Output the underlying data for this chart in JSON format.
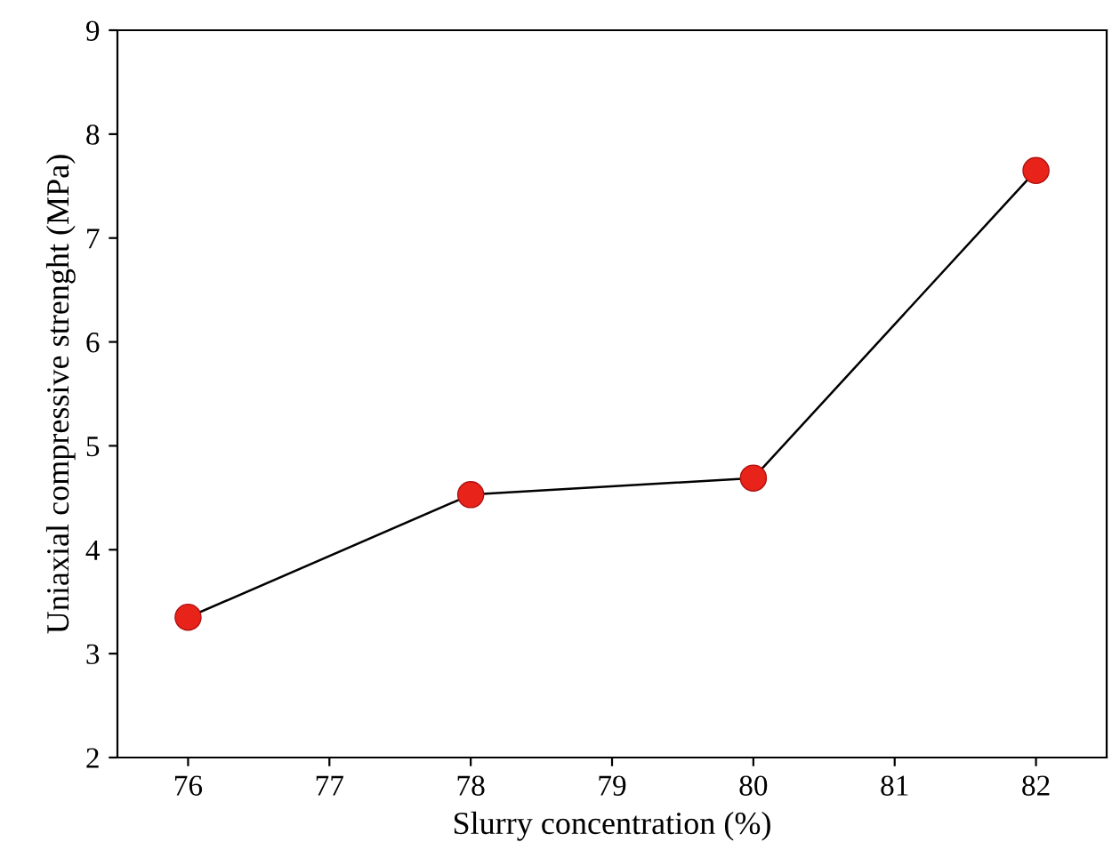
{
  "chart_data": {
    "type": "line",
    "xlabel": "Slurry concentration (%)",
    "ylabel": "Uniaxial compressive strenght (MPa)",
    "x": [
      76,
      78,
      80,
      82
    ],
    "series": [
      {
        "color": "#e8231a",
        "values": [
          3.35,
          4.53,
          4.69,
          7.65
        ]
      }
    ],
    "xlim": [
      75.5,
      82.5
    ],
    "xticks": [
      76,
      77,
      78,
      79,
      80,
      81,
      82
    ],
    "ylim": [
      2,
      9
    ],
    "yticks": [
      2,
      3,
      4,
      5,
      6,
      7,
      8,
      9
    ],
    "marker": "circle",
    "line_style": "solid",
    "grid": false,
    "legend": false
  }
}
